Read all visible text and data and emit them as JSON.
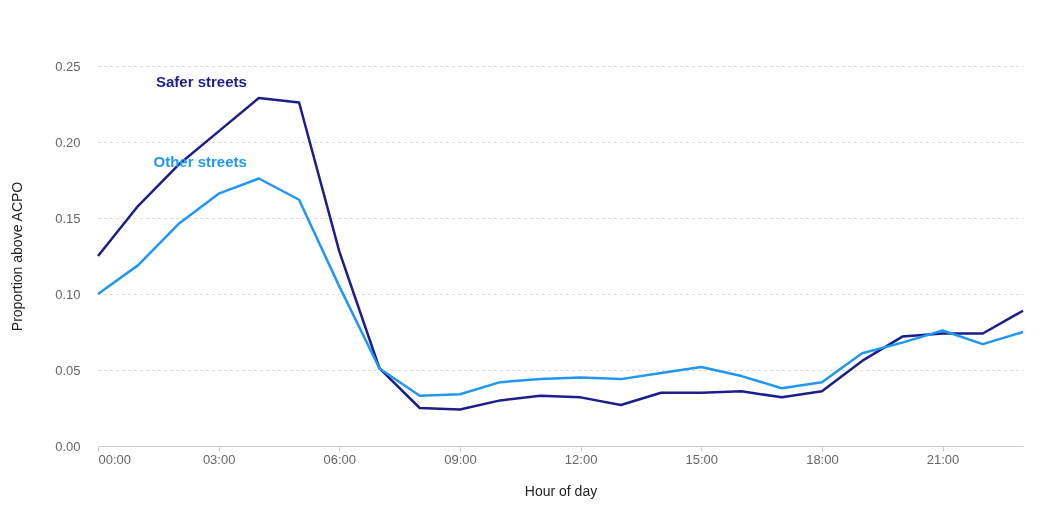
{
  "chart_data": {
    "type": "line",
    "xlabel": "Hour of day",
    "ylabel": "Proportion above ACPO",
    "x": [
      0,
      1,
      2,
      3,
      4,
      5,
      6,
      7,
      8,
      9,
      10,
      11,
      12,
      13,
      14,
      15,
      16,
      17,
      18,
      19,
      20,
      21,
      22,
      23
    ],
    "series": [
      {
        "name": "Safer streets",
        "color": "#1a1f8c",
        "values": [
          0.125,
          0.158,
          0.185,
          0.207,
          0.229,
          0.226,
          0.128,
          0.051,
          0.025,
          0.024,
          0.03,
          0.033,
          0.032,
          0.027,
          0.035,
          0.035,
          0.036,
          0.032,
          0.036,
          0.056,
          0.072,
          0.074,
          0.074,
          0.089
        ]
      },
      {
        "name": "Other streets",
        "color": "#2196f3",
        "values": [
          0.1,
          0.119,
          0.146,
          0.166,
          0.176,
          0.162,
          0.105,
          0.051,
          0.033,
          0.034,
          0.042,
          0.044,
          0.045,
          0.044,
          0.048,
          0.052,
          0.046,
          0.038,
          0.042,
          0.061,
          0.068,
          0.076,
          0.067,
          0.075
        ]
      }
    ],
    "xlim": [
      0,
      23
    ],
    "xticks": [
      {
        "value": 0,
        "label": "00:00"
      },
      {
        "value": 3,
        "label": "03:00"
      },
      {
        "value": 6,
        "label": "06:00"
      },
      {
        "value": 9,
        "label": "09:00"
      },
      {
        "value": 12,
        "label": "12:00"
      },
      {
        "value": 15,
        "label": "15:00"
      },
      {
        "value": 18,
        "label": "18:00"
      },
      {
        "value": 21,
        "label": "21:00"
      }
    ],
    "ylim": [
      0,
      0.25
    ],
    "yticks": [
      {
        "value": 0,
        "label": "0.00"
      },
      0.05,
      {
        "value": 0.1,
        "label": "0.10"
      },
      0.15,
      {
        "value": 0.2,
        "label": "0.20"
      },
      0.25
    ],
    "grid": "y",
    "marker": "none",
    "line_style": "solid"
  }
}
